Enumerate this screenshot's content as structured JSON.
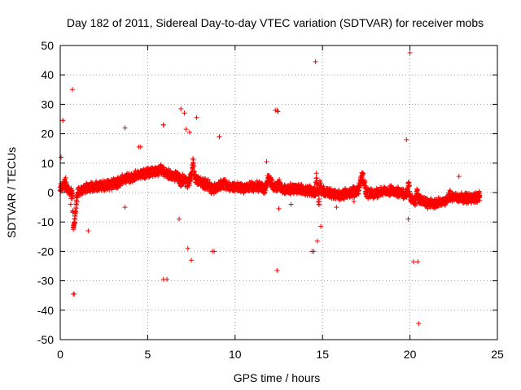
{
  "chart_data": {
    "type": "scatter",
    "title": "Day 182 of 2011, Sidereal Day-to-day VTEC variation (SDTVAR) for receiver mobs",
    "xlabel": "GPS time / hours",
    "ylabel": "SDTVAR / TECUs",
    "xlim": [
      0,
      25
    ],
    "ylim": [
      -50,
      50
    ],
    "xticks": [
      "0",
      "5",
      "10",
      "15",
      "20",
      "25"
    ],
    "yticks": [
      "50",
      "40",
      "30",
      "20",
      "10",
      "0",
      "-10",
      "-20",
      "-30",
      "-40",
      "-50"
    ],
    "xtick_values": [
      0,
      5,
      10,
      15,
      20,
      25
    ],
    "ytick_values": [
      50,
      40,
      30,
      20,
      10,
      0,
      -10,
      -20,
      -30,
      -40,
      -50
    ],
    "grid": true,
    "marker": "+",
    "color": "#ff0000",
    "series": [
      {
        "name": "SDTVAR",
        "x": [
          0.1,
          0.25,
          0.45,
          0.7,
          0.85,
          0.75,
          0.8,
          0.9,
          1.0,
          1.2,
          1.5,
          1.8,
          2.1,
          2.4,
          2.7,
          3.0,
          3.3,
          3.5,
          3.7,
          3.8,
          4.0,
          4.2,
          4.5,
          4.8,
          5.1,
          5.4,
          5.7,
          5.8,
          6.0,
          6.3,
          6.6,
          6.8,
          6.9,
          7.0,
          7.1,
          7.3,
          7.4,
          7.5,
          7.6,
          7.7,
          7.9,
          8.2,
          8.5,
          8.7,
          9.0,
          9.3,
          9.6,
          10.0,
          10.5,
          11.0,
          11.5,
          11.7,
          11.9,
          12.2,
          12.4,
          12.5,
          12.7,
          13.0,
          13.5,
          14.0,
          14.3,
          14.6,
          14.65,
          14.8,
          14.85,
          14.9,
          15.2,
          15.6,
          16.0,
          16.5,
          17.0,
          17.3,
          17.5,
          18.0,
          18.5,
          19.0,
          19.5,
          19.8,
          19.9,
          20.0,
          20.05,
          20.3,
          20.4,
          20.45,
          20.8,
          21.0,
          21.5,
          22.0,
          22.3,
          22.6,
          23.0,
          23.5,
          23.9,
          0.05,
          0.15,
          0.3,
          0.6,
          0.8,
          4.6,
          5.9,
          6.1,
          7.8,
          8.8,
          9.1,
          11.8,
          12.3,
          13.2,
          14.4,
          15.8,
          16.8,
          17.8,
          18.8,
          20.2,
          21.2,
          22.8,
          23.2
        ],
        "y": [
          2,
          3,
          1,
          -1,
          -8,
          -12,
          -10,
          -5,
          0,
          1,
          1.5,
          2,
          2,
          2.5,
          2.5,
          3,
          3.5,
          4,
          4.5,
          5,
          5,
          5.5,
          6,
          6.5,
          7,
          7,
          7.5,
          8,
          7,
          6,
          5.5,
          5,
          3,
          4.5,
          4,
          3.5,
          4,
          6,
          10,
          5,
          4,
          3,
          2.5,
          1,
          2,
          3,
          2,
          2,
          1.5,
          2,
          2,
          1,
          5,
          2,
          1.5,
          3,
          1,
          1,
          1.5,
          1,
          0.5,
          0,
          5,
          -3,
          4,
          1,
          0,
          -0.5,
          -1,
          0,
          0.5,
          6,
          0,
          -0.5,
          0.5,
          0.5,
          0,
          -1,
          3,
          -1,
          -2,
          -3,
          0,
          -2,
          -3,
          -4,
          -3.5,
          -3,
          -1,
          -2,
          -2,
          -2,
          -1.5,
          12,
          24.5,
          5,
          -4,
          -34.5,
          15.5,
          23,
          -29.5,
          25.5,
          -20,
          19,
          10.5,
          28,
          -4,
          -20,
          -5,
          -3,
          -1,
          -0.5,
          -23.5,
          -2,
          5.5,
          -0.5
        ],
        "outliers": [
          {
            "x": 14.6,
            "y": 44.5
          },
          {
            "x": 20.0,
            "y": 47.5
          },
          {
            "x": 0.7,
            "y": 35
          },
          {
            "x": 0.15,
            "y": 24.5
          },
          {
            "x": 6.9,
            "y": 28.5
          },
          {
            "x": 7.1,
            "y": 27
          },
          {
            "x": 12.4,
            "y": 28
          },
          {
            "x": 12.45,
            "y": 27.5
          },
          {
            "x": 3.7,
            "y": 22
          },
          {
            "x": 5.9,
            "y": 23
          },
          {
            "x": 7.2,
            "y": 21.5
          },
          {
            "x": 7.4,
            "y": 20.5
          },
          {
            "x": 9.1,
            "y": 19
          },
          {
            "x": 19.8,
            "y": 18
          },
          {
            "x": 4.5,
            "y": 15.5
          },
          {
            "x": 0.75,
            "y": -34.5
          },
          {
            "x": 5.9,
            "y": -29.5
          },
          {
            "x": 12.4,
            "y": -26.5
          },
          {
            "x": 20.5,
            "y": -44.5
          },
          {
            "x": 20.45,
            "y": -23.5
          },
          {
            "x": 7.5,
            "y": -23
          },
          {
            "x": 7.3,
            "y": -19
          },
          {
            "x": 8.7,
            "y": -20
          },
          {
            "x": 14.5,
            "y": -20
          },
          {
            "x": 14.7,
            "y": -16.5
          },
          {
            "x": 14.9,
            "y": -11.5
          },
          {
            "x": 1.6,
            "y": -13
          },
          {
            "x": 6.8,
            "y": -9
          },
          {
            "x": 19.9,
            "y": -9
          },
          {
            "x": 3.7,
            "y": -5
          },
          {
            "x": 12.5,
            "y": -5.5
          }
        ]
      }
    ]
  }
}
